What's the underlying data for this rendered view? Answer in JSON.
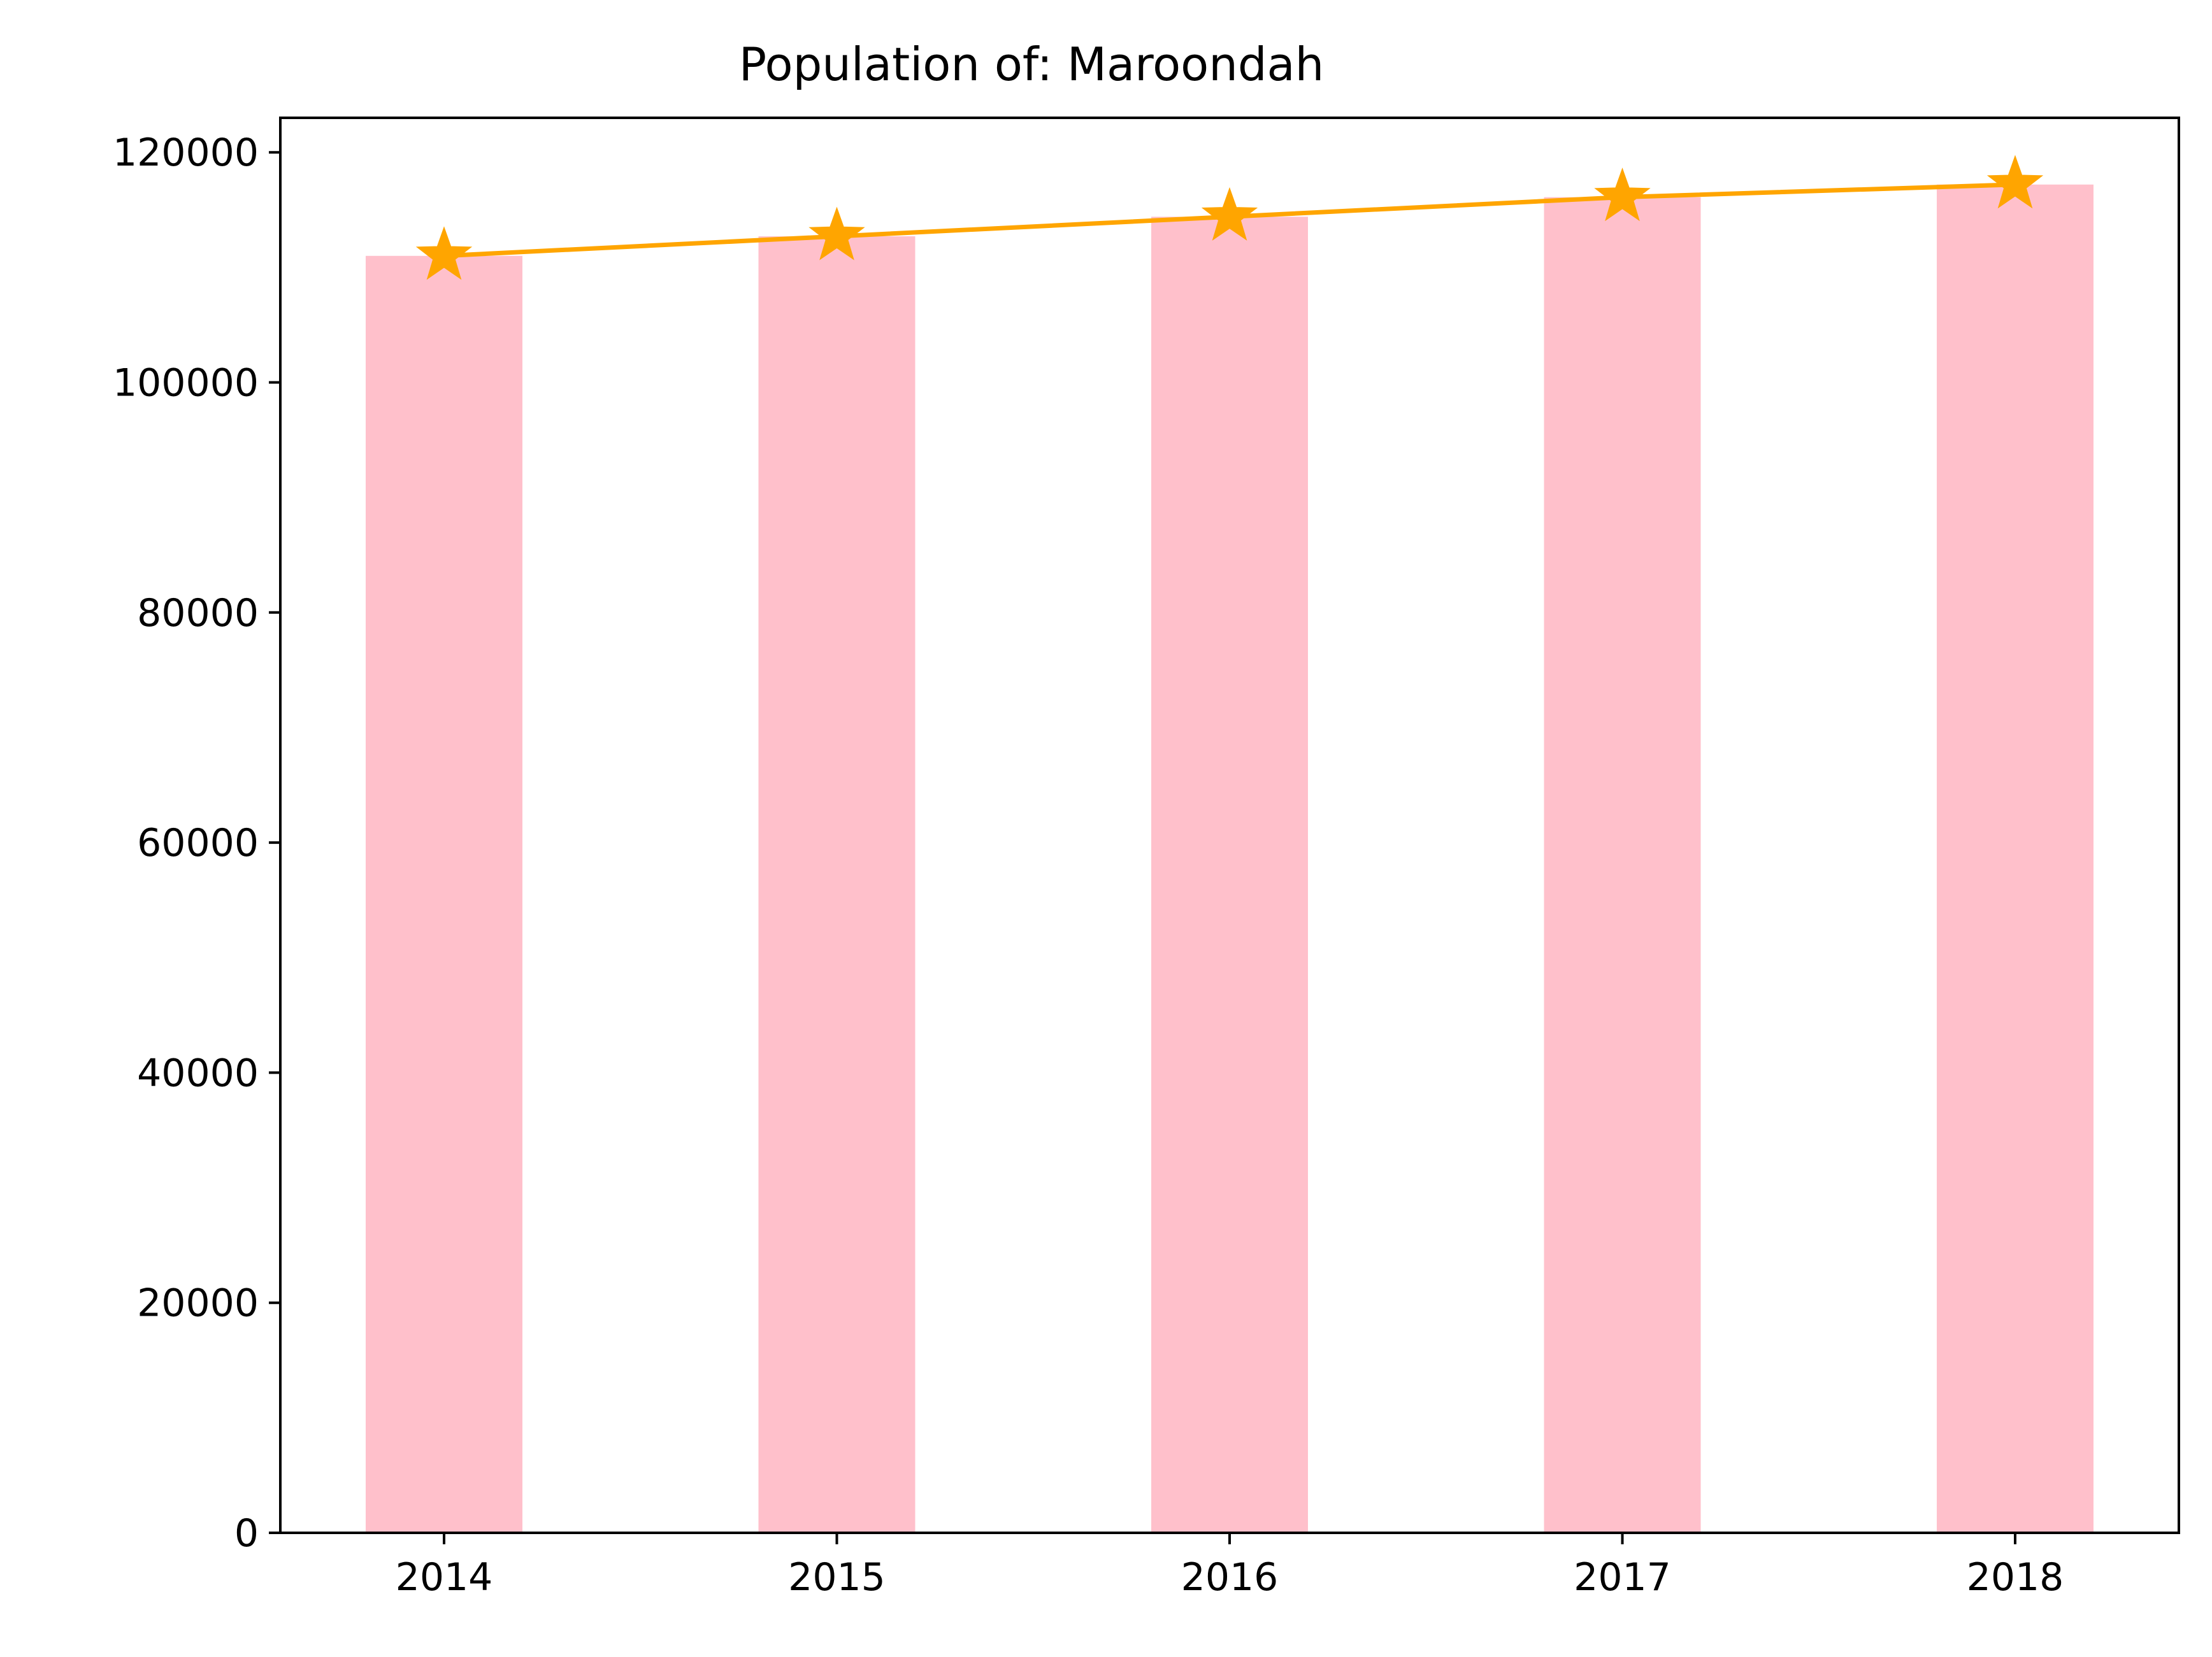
{
  "chart_data": {
    "type": "bar",
    "title": "Population of: Maroondah",
    "xlabel": "",
    "ylabel": "",
    "categories": [
      "2014",
      "2015",
      "2016",
      "2017",
      "2018"
    ],
    "series": [
      {
        "type": "bar",
        "values": [
          111000,
          112700,
          114400,
          116100,
          117200
        ],
        "color": "#FFC0CB"
      },
      {
        "type": "line",
        "marker": "star",
        "values": [
          111000,
          112700,
          114400,
          116100,
          117200
        ],
        "color": "#FFA500"
      }
    ],
    "ylim": [
      0,
      123000
    ],
    "yticks": [
      0,
      20000,
      40000,
      60000,
      80000,
      100000,
      120000
    ],
    "ytick_labels": [
      "0",
      "20000",
      "40000",
      "60000",
      "80000",
      "100000",
      "120000"
    ],
    "grid": false,
    "legend": "none"
  }
}
